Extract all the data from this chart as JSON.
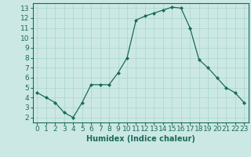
{
  "x": [
    0,
    1,
    2,
    3,
    4,
    5,
    6,
    7,
    8,
    9,
    10,
    11,
    12,
    13,
    14,
    15,
    16,
    17,
    18,
    19,
    20,
    21,
    22,
    23
  ],
  "y": [
    4.5,
    4.0,
    3.5,
    2.5,
    2.0,
    3.5,
    5.3,
    5.3,
    5.3,
    6.5,
    8.0,
    11.8,
    12.2,
    12.5,
    12.8,
    13.1,
    13.0,
    11.0,
    7.8,
    7.0,
    6.0,
    5.0,
    4.5,
    3.5
  ],
  "line_color": "#1a6b5a",
  "marker": "D",
  "marker_size": 2,
  "bg_color": "#cce8e4",
  "grid_color": "#a8d4cc",
  "xlabel": "Humidex (Indice chaleur)",
  "xlim": [
    -0.5,
    23.5
  ],
  "ylim": [
    1.5,
    13.5
  ],
  "xticks": [
    0,
    1,
    2,
    3,
    4,
    5,
    6,
    7,
    8,
    9,
    10,
    11,
    12,
    13,
    14,
    15,
    16,
    17,
    18,
    19,
    20,
    21,
    22,
    23
  ],
  "yticks": [
    2,
    3,
    4,
    5,
    6,
    7,
    8,
    9,
    10,
    11,
    12,
    13
  ],
  "xlabel_fontsize": 7,
  "tick_fontsize": 6.5
}
